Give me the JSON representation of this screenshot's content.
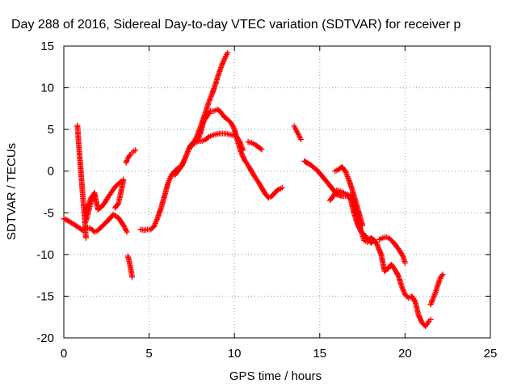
{
  "chart_data": {
    "type": "scatter",
    "title": "Day 288 of 2016, Sidereal Day-to-day VTEC variation (SDTVAR) for receiver p",
    "xlabel": "GPS time / hours",
    "ylabel": "SDTVAR / TECUs",
    "xlim": [
      0,
      25
    ],
    "ylim": [
      -20,
      15
    ],
    "xticks": [
      0,
      5,
      10,
      15,
      20,
      25
    ],
    "yticks": [
      15,
      10,
      5,
      0,
      -5,
      -10,
      -15,
      -20
    ],
    "grid": true,
    "legend": "none",
    "marker": "+",
    "series_color": "#ff0000",
    "series": [
      {
        "x": [
          0.0,
          0.3,
          0.6,
          0.9,
          1.1,
          1.2,
          1.4,
          1.6,
          1.8,
          2.0,
          2.3,
          2.6,
          2.9,
          3.2,
          3.5,
          3.7
        ],
        "y": [
          -5.7,
          -6.0,
          -6.4,
          -6.8,
          -7.1,
          -7.0,
          -6.8,
          -6.9,
          -7.3,
          -7.1,
          -6.5,
          -5.9,
          -5.2,
          -5.6,
          -6.5,
          -7.3
        ]
      },
      {
        "x": [
          0.8,
          0.85,
          0.9,
          0.95,
          1.0,
          1.05,
          1.1,
          1.15,
          1.2,
          1.25,
          1.3
        ],
        "y": [
          5.5,
          4.0,
          2.5,
          1.3,
          0.0,
          -1.3,
          -2.6,
          -3.8,
          -5.0,
          -6.5,
          -8.0
        ]
      },
      {
        "x": [
          1.2,
          1.4,
          1.6,
          1.8,
          2.0,
          2.2,
          2.4,
          2.6,
          2.8,
          3.0,
          3.2,
          3.4,
          3.5,
          3.4,
          3.3,
          3.2,
          3.0
        ],
        "y": [
          -5.0,
          -4.2,
          -3.2,
          -2.6,
          -4.6,
          -4.3,
          -3.8,
          -3.1,
          -2.5,
          -1.9,
          -1.5,
          -1.2,
          -1.0,
          -2.0,
          -3.0,
          -3.9,
          -4.4
        ]
      },
      {
        "x": [
          1.3,
          1.4,
          1.5,
          1.6,
          1.7,
          1.8
        ],
        "y": [
          -6.0,
          -5.2,
          -4.4,
          -3.7,
          -3.1,
          -2.6
        ]
      },
      {
        "x": [
          3.65,
          3.7,
          3.8,
          3.9,
          4.0,
          4.1,
          4.2
        ],
        "y": [
          1.0,
          1.3,
          1.7,
          2.0,
          2.2,
          2.4,
          2.5
        ]
      },
      {
        "x": [
          3.75,
          3.8,
          3.85,
          3.9,
          3.95,
          4.0
        ],
        "y": [
          -10.2,
          -10.5,
          -11.0,
          -11.5,
          -12.0,
          -12.7
        ]
      },
      {
        "x": [
          4.5,
          4.7,
          4.9,
          5.1,
          5.3,
          5.5,
          5.7,
          5.9,
          6.1,
          6.3,
          6.5,
          6.7,
          6.9,
          7.1,
          7.3,
          7.5,
          7.7,
          7.9,
          8.1,
          8.3,
          8.5,
          8.7,
          8.9,
          9.1,
          9.3,
          9.5,
          9.7,
          9.9,
          10.1,
          10.3,
          10.5
        ],
        "y": [
          -7.0,
          -7.1,
          -7.0,
          -7.0,
          -6.6,
          -5.6,
          -4.4,
          -3.0,
          -1.5,
          -0.5,
          0.0,
          0.4,
          0.6,
          1.5,
          2.5,
          3.2,
          3.5,
          3.6,
          3.6,
          3.8,
          4.1,
          4.3,
          4.4,
          4.5,
          4.5,
          4.5,
          4.4,
          4.3,
          4.2,
          3.6,
          2.5
        ]
      },
      {
        "x": [
          6.5,
          6.8,
          7.0,
          7.2,
          7.4,
          7.6,
          7.8,
          8.0,
          8.2,
          8.4,
          8.6,
          8.8,
          9.0,
          9.2,
          9.4,
          9.6,
          9.8,
          10.0,
          10.2,
          10.4,
          10.6,
          10.8,
          11.0,
          11.2,
          11.4,
          11.6,
          11.8,
          12.0,
          12.2,
          12.4,
          12.6,
          12.8
        ],
        "y": [
          -0.5,
          0.3,
          1.0,
          2.0,
          3.0,
          3.5,
          3.5,
          4.5,
          6.0,
          6.6,
          7.2,
          7.2,
          7.4,
          7.1,
          6.5,
          6.2,
          5.8,
          5.0,
          3.5,
          2.2,
          1.3,
          0.7,
          0.0,
          -0.7,
          -1.3,
          -2.0,
          -2.7,
          -3.2,
          -3.0,
          -2.5,
          -2.2,
          -2.0
        ]
      },
      {
        "x": [
          7.5,
          7.7,
          7.9,
          8.1,
          8.3,
          8.5,
          8.7,
          8.9,
          9.1,
          9.3,
          9.5,
          9.6
        ],
        "y": [
          3.0,
          3.7,
          4.7,
          5.8,
          7.0,
          8.3,
          9.3,
          10.5,
          11.8,
          12.9,
          13.8,
          14.2
        ]
      },
      {
        "x": [
          10.8,
          11.0,
          11.2,
          11.4,
          11.6
        ],
        "y": [
          3.5,
          3.4,
          3.2,
          2.9,
          2.6
        ]
      },
      {
        "x": [
          13.5,
          13.6,
          13.7,
          13.8,
          13.9
        ],
        "y": [
          5.4,
          5.0,
          4.6,
          4.2,
          3.8
        ]
      },
      {
        "x": [
          14.1,
          14.5,
          14.9,
          15.3,
          15.7,
          16.0,
          16.3,
          16.6,
          16.8,
          17.0,
          17.2,
          17.4,
          17.6,
          17.8,
          18.0,
          18.3,
          18.6,
          18.8,
          19.0,
          19.2,
          19.4,
          19.6,
          19.8,
          20.0,
          20.2,
          20.4,
          20.6,
          20.8,
          21.0,
          21.2,
          21.4,
          21.5
        ],
        "y": [
          1.2,
          0.7,
          0.0,
          -1.0,
          -2.0,
          -2.8,
          -3.0,
          -3.0,
          -2.8,
          -4.0,
          -5.5,
          -7.0,
          -8.3,
          -8.5,
          -8.0,
          -8.5,
          -10.0,
          -12.0,
          -11.7,
          -11.2,
          -11.8,
          -12.5,
          -13.8,
          -14.8,
          -15.2,
          -15.0,
          -15.7,
          -17.3,
          -18.2,
          -18.6,
          -18.0,
          -17.8
        ]
      },
      {
        "x": [
          15.6,
          15.8,
          16.0,
          16.2,
          16.4,
          16.6,
          16.8,
          17.0,
          17.2,
          17.4,
          17.6,
          17.8,
          18.0,
          18.2
        ],
        "y": [
          -3.5,
          -3.0,
          -2.3,
          -2.4,
          -2.6,
          -2.8,
          -3.3,
          -5.0,
          -6.3,
          -7.2,
          -7.6,
          -8.0,
          -8.6,
          -8.3
        ]
      },
      {
        "x": [
          15.9,
          16.1,
          16.3,
          16.5,
          16.7,
          16.9,
          17.1,
          17.3,
          17.5
        ],
        "y": [
          0.0,
          0.2,
          0.5,
          0.0,
          -1.0,
          -2.2,
          -3.6,
          -5.0,
          -6.5
        ]
      },
      {
        "x": [
          18.5,
          18.7,
          18.9,
          19.1,
          19.3,
          19.5,
          19.7,
          19.9,
          20.0
        ],
        "y": [
          -8.2,
          -8.0,
          -7.9,
          -8.1,
          -8.5,
          -9.0,
          -9.6,
          -10.3,
          -11.0
        ]
      },
      {
        "x": [
          21.5,
          21.6,
          21.7,
          21.8,
          21.9,
          22.0,
          22.1,
          22.2
        ],
        "y": [
          -16.0,
          -15.5,
          -15.0,
          -14.5,
          -13.8,
          -13.2,
          -12.7,
          -12.4
        ]
      }
    ]
  }
}
